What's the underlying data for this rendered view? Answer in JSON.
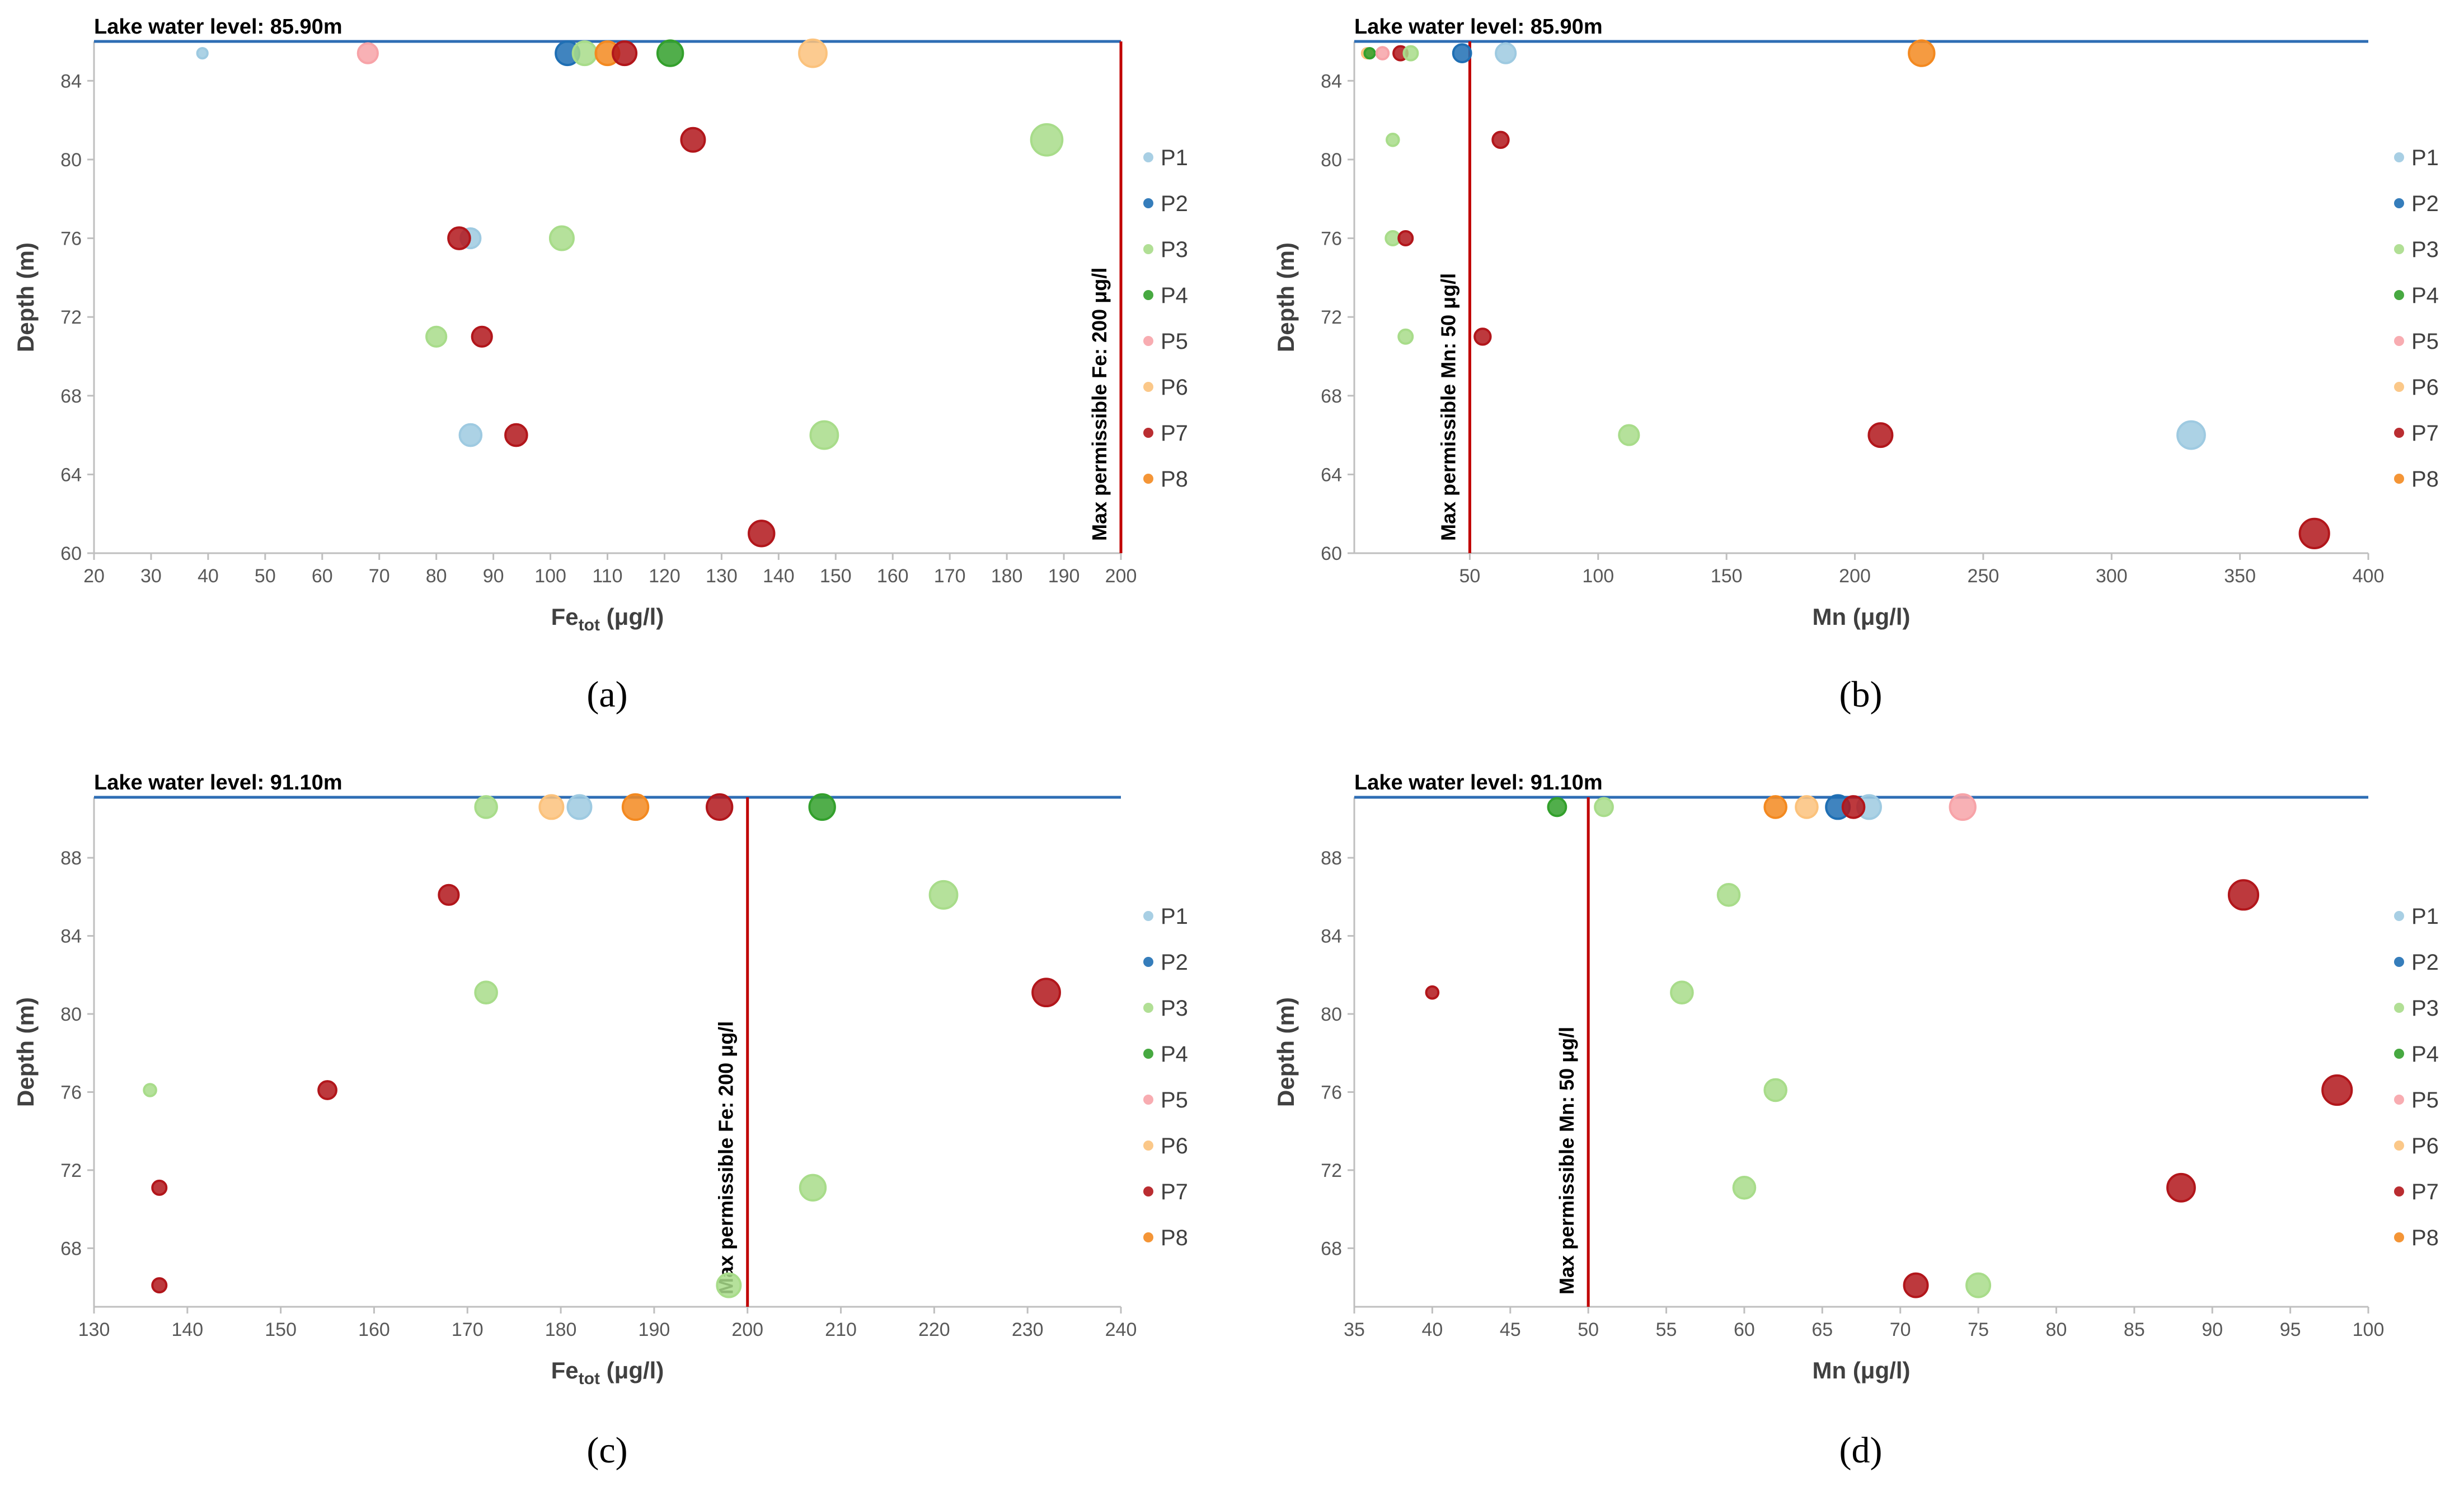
{
  "legend": {
    "labels": [
      "P1",
      "P2",
      "P3",
      "P4",
      "P5",
      "P6",
      "P7",
      "P8"
    ],
    "colors": [
      "#9ecae1",
      "#1f6fb4",
      "#a8dc8a",
      "#33a02c",
      "#f7a3a8",
      "#fbc27c",
      "#b2161b",
      "#f38920"
    ]
  },
  "lake_line_color": "#2e6db4",
  "limit_line_color": "#c00000",
  "chart_data": [
    {
      "panel_label": "(a)",
      "type": "scatter",
      "lake_label": "Lake water level: 85.90m",
      "lake_level": 85.9,
      "limit_label": "Max permissible Fe: 200 μg/l",
      "limit_x": 200,
      "xlabel_main": "Fe",
      "xlabel_sub": "tot",
      "xlabel_rest": " (μg/l)",
      "ylabel": "Depth (m)",
      "xlim": [
        20,
        200
      ],
      "ylim": [
        60,
        86
      ],
      "xticks": [
        "20",
        "30",
        "40",
        "50",
        "60",
        "70",
        "80",
        "90",
        "100",
        "110",
        "120",
        "130",
        "140",
        "150",
        "160",
        "170",
        "180",
        "190",
        "200"
      ],
      "yticks": [
        "60",
        "64",
        "68",
        "72",
        "76",
        "80",
        "84"
      ],
      "points": [
        {
          "s": 0,
          "x": 39,
          "y": 85.4,
          "size": 0.3
        },
        {
          "s": 4,
          "x": 68,
          "y": 85.4,
          "size": 0.8
        },
        {
          "s": 1,
          "x": 103,
          "y": 85.4,
          "size": 1.0
        },
        {
          "s": 2,
          "x": 106,
          "y": 85.4,
          "size": 1.0
        },
        {
          "s": 7,
          "x": 110,
          "y": 85.4,
          "size": 1.0
        },
        {
          "s": 6,
          "x": 113,
          "y": 85.4,
          "size": 1.0
        },
        {
          "s": 3,
          "x": 121,
          "y": 85.4,
          "size": 1.1
        },
        {
          "s": 5,
          "x": 146,
          "y": 85.4,
          "size": 1.2
        },
        {
          "s": 6,
          "x": 125,
          "y": 81.0,
          "size": 1.0
        },
        {
          "s": 2,
          "x": 187,
          "y": 81.0,
          "size": 1.4
        },
        {
          "s": 0,
          "x": 86,
          "y": 76.0,
          "size": 0.8
        },
        {
          "s": 6,
          "x": 84,
          "y": 76.0,
          "size": 0.9
        },
        {
          "s": 2,
          "x": 102,
          "y": 76.0,
          "size": 1.0
        },
        {
          "s": 2,
          "x": 80,
          "y": 71.0,
          "size": 0.8
        },
        {
          "s": 6,
          "x": 88,
          "y": 71.0,
          "size": 0.8
        },
        {
          "s": 0,
          "x": 86,
          "y": 66.0,
          "size": 0.9
        },
        {
          "s": 6,
          "x": 94,
          "y": 66.0,
          "size": 0.9
        },
        {
          "s": 2,
          "x": 148,
          "y": 66.0,
          "size": 1.2
        },
        {
          "s": 6,
          "x": 137,
          "y": 61.0,
          "size": 1.1
        }
      ]
    },
    {
      "panel_label": "(b)",
      "type": "scatter",
      "lake_label": "Lake water level: 85.90m",
      "lake_level": 85.9,
      "limit_label": "Max permissible Mn: 50 μg/l",
      "limit_x": 50,
      "xlabel_main": "Mn",
      "xlabel_sub": "",
      "xlabel_rest": " (μg/l)",
      "ylabel": "Depth (m)",
      "xlim": [
        5,
        400
      ],
      "ylim": [
        60,
        86
      ],
      "xticks": [
        "50",
        "100",
        "150",
        "200",
        "250",
        "300",
        "350",
        "400"
      ],
      "yticks": [
        "60",
        "64",
        "68",
        "72",
        "76",
        "80",
        "84"
      ],
      "points": [
        {
          "s": 5,
          "x": 10,
          "y": 85.4,
          "size": 0.3
        },
        {
          "s": 3,
          "x": 11,
          "y": 85.4,
          "size": 0.3
        },
        {
          "s": 4,
          "x": 16,
          "y": 85.4,
          "size": 0.4
        },
        {
          "s": 6,
          "x": 23,
          "y": 85.4,
          "size": 0.5
        },
        {
          "s": 2,
          "x": 27,
          "y": 85.4,
          "size": 0.5
        },
        {
          "s": 1,
          "x": 47,
          "y": 85.4,
          "size": 0.7
        },
        {
          "s": 0,
          "x": 64,
          "y": 85.4,
          "size": 0.8
        },
        {
          "s": 7,
          "x": 226,
          "y": 85.4,
          "size": 1.1
        },
        {
          "s": 2,
          "x": 20,
          "y": 81.0,
          "size": 0.4
        },
        {
          "s": 6,
          "x": 62,
          "y": 81.0,
          "size": 0.6
        },
        {
          "s": 2,
          "x": 20,
          "y": 76.0,
          "size": 0.5
        },
        {
          "s": 6,
          "x": 25,
          "y": 76.0,
          "size": 0.5
        },
        {
          "s": 2,
          "x": 25,
          "y": 71.0,
          "size": 0.5
        },
        {
          "s": 6,
          "x": 55,
          "y": 71.0,
          "size": 0.6
        },
        {
          "s": 2,
          "x": 112,
          "y": 66.0,
          "size": 0.8
        },
        {
          "s": 6,
          "x": 210,
          "y": 66.0,
          "size": 1.0
        },
        {
          "s": 0,
          "x": 331,
          "y": 66.0,
          "size": 1.2
        },
        {
          "s": 6,
          "x": 379,
          "y": 61.0,
          "size": 1.3
        }
      ]
    },
    {
      "panel_label": "(c)",
      "type": "scatter",
      "lake_label": "Lake water level: 91.10m",
      "lake_level": 91.1,
      "limit_label": "Max permissible Fe: 200 μg/l",
      "limit_x": 200,
      "xlabel_main": "Fe",
      "xlabel_sub": "tot",
      "xlabel_rest": " (μg/l)",
      "ylabel": "Depth (m)",
      "xlim": [
        130,
        240
      ],
      "ylim": [
        65,
        91.1
      ],
      "xticks": [
        "130",
        "140",
        "150",
        "160",
        "170",
        "180",
        "190",
        "200",
        "210",
        "220",
        "230",
        "240"
      ],
      "yticks": [
        "68",
        "72",
        "76",
        "80",
        "84",
        "88"
      ],
      "points": [
        {
          "s": 2,
          "x": 172,
          "y": 90.6,
          "size": 0.9
        },
        {
          "s": 5,
          "x": 179,
          "y": 90.6,
          "size": 1.0
        },
        {
          "s": 0,
          "x": 182,
          "y": 90.6,
          "size": 1.0
        },
        {
          "s": 7,
          "x": 188,
          "y": 90.6,
          "size": 1.1
        },
        {
          "s": 6,
          "x": 197,
          "y": 90.6,
          "size": 1.1
        },
        {
          "s": 3,
          "x": 208,
          "y": 90.6,
          "size": 1.1
        },
        {
          "s": 6,
          "x": 168,
          "y": 86.1,
          "size": 0.8
        },
        {
          "s": 2,
          "x": 221,
          "y": 86.1,
          "size": 1.2
        },
        {
          "s": 2,
          "x": 172,
          "y": 81.1,
          "size": 0.9
        },
        {
          "s": 6,
          "x": 232,
          "y": 81.1,
          "size": 1.2
        },
        {
          "s": 2,
          "x": 136,
          "y": 76.1,
          "size": 0.4
        },
        {
          "s": 6,
          "x": 155,
          "y": 76.1,
          "size": 0.7
        },
        {
          "s": 6,
          "x": 137,
          "y": 71.1,
          "size": 0.5
        },
        {
          "s": 2,
          "x": 207,
          "y": 71.1,
          "size": 1.1
        },
        {
          "s": 6,
          "x": 137,
          "y": 66.1,
          "size": 0.5
        },
        {
          "s": 2,
          "x": 198,
          "y": 66.1,
          "size": 1.0
        }
      ]
    },
    {
      "panel_label": "(d)",
      "type": "scatter",
      "lake_label": "Lake water level: 91.10m",
      "lake_level": 91.1,
      "limit_label": "Max permissible Mn: 50 μg/l",
      "limit_x": 50,
      "xlabel_main": "Mn",
      "xlabel_sub": "",
      "xlabel_rest": " (μg/l)",
      "ylabel": "Depth (m)",
      "xlim": [
        35,
        100
      ],
      "ylim": [
        65,
        91.1
      ],
      "xticks": [
        "35",
        "40",
        "45",
        "50",
        "55",
        "60",
        "65",
        "70",
        "75",
        "80",
        "85",
        "90",
        "95",
        "100"
      ],
      "yticks": [
        "68",
        "72",
        "76",
        "80",
        "84",
        "88"
      ],
      "points": [
        {
          "s": 3,
          "x": 48,
          "y": 90.6,
          "size": 0.7
        },
        {
          "s": 2,
          "x": 51,
          "y": 90.6,
          "size": 0.7
        },
        {
          "s": 7,
          "x": 62,
          "y": 90.6,
          "size": 0.9
        },
        {
          "s": 5,
          "x": 64,
          "y": 90.6,
          "size": 0.9
        },
        {
          "s": 1,
          "x": 66,
          "y": 90.6,
          "size": 1.0
        },
        {
          "s": 0,
          "x": 68,
          "y": 90.6,
          "size": 1.0
        },
        {
          "s": 6,
          "x": 67,
          "y": 90.6,
          "size": 0.9
        },
        {
          "s": 4,
          "x": 74,
          "y": 90.6,
          "size": 1.1
        },
        {
          "s": 2,
          "x": 59,
          "y": 86.1,
          "size": 0.9
        },
        {
          "s": 6,
          "x": 92,
          "y": 86.1,
          "size": 1.3
        },
        {
          "s": 6,
          "x": 40,
          "y": 81.1,
          "size": 0.4
        },
        {
          "s": 2,
          "x": 56,
          "y": 81.1,
          "size": 0.9
        },
        {
          "s": 2,
          "x": 62,
          "y": 76.1,
          "size": 0.9
        },
        {
          "s": 6,
          "x": 98,
          "y": 76.1,
          "size": 1.3
        },
        {
          "s": 2,
          "x": 60,
          "y": 71.1,
          "size": 0.9
        },
        {
          "s": 6,
          "x": 88,
          "y": 71.1,
          "size": 1.2
        },
        {
          "s": 6,
          "x": 71,
          "y": 66.1,
          "size": 1.0
        },
        {
          "s": 2,
          "x": 75,
          "y": 66.1,
          "size": 1.0
        }
      ]
    }
  ]
}
